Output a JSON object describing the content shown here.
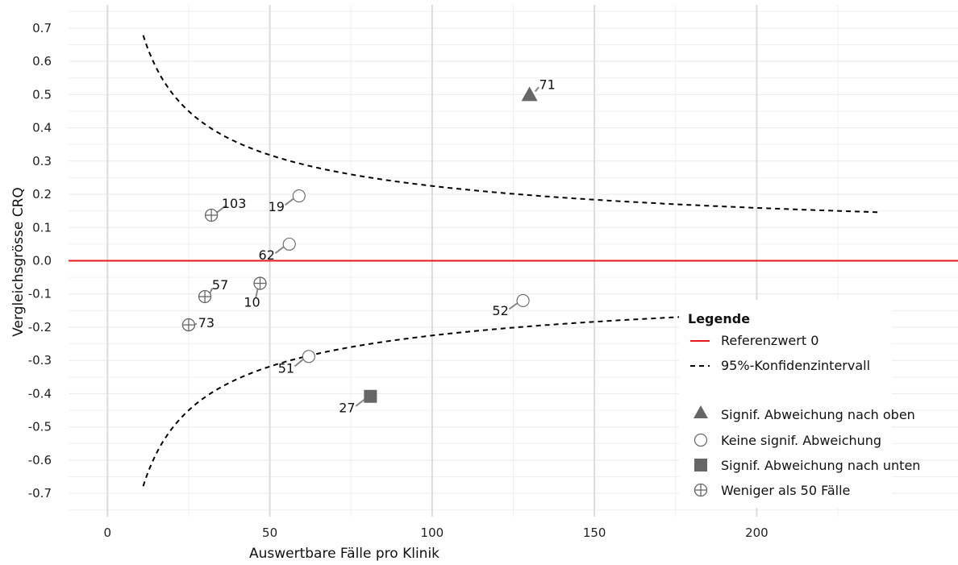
{
  "chart_data": {
    "type": "scatter",
    "xlabel": "Auswertbare Fälle pro Klinik",
    "ylabel": "Vergleichsgrösse CRQ",
    "xlim": [
      -12,
      262
    ],
    "ylim": [
      -0.77,
      0.77
    ],
    "x_ticks": [
      0,
      50,
      100,
      150,
      200
    ],
    "x_tick_labels": [
      "0",
      "50",
      "100",
      "150",
      "200"
    ],
    "y_ticks": [
      0.7,
      0.6,
      0.5,
      0.4,
      0.3,
      0.2,
      0.1,
      0.0,
      -0.1,
      -0.2,
      -0.3,
      -0.4,
      -0.5,
      -0.6,
      -0.7
    ],
    "y_tick_labels": [
      "0.7",
      "0.6",
      "0.5",
      "0.4",
      "0.3",
      "0.2",
      "0.1",
      "0.0",
      "-0.1",
      "-0.2",
      "-0.3",
      "-0.4",
      "-0.5",
      "-0.6",
      "-0.7"
    ],
    "grid": true,
    "reference_line": {
      "y": 0,
      "color": "#e8191c"
    },
    "confidence_band": {
      "coefficient": 2.25,
      "x_from": 11,
      "x_to": 238,
      "color": "#000000"
    },
    "points": [
      {
        "id": "71",
        "x": 130,
        "y": 0.5,
        "category": "up"
      },
      {
        "id": "19",
        "x": 59,
        "y": 0.195,
        "category": "none"
      },
      {
        "id": "103",
        "x": 32,
        "y": 0.137,
        "category": "few"
      },
      {
        "id": "62",
        "x": 56,
        "y": 0.05,
        "category": "none"
      },
      {
        "id": "10",
        "x": 47,
        "y": -0.068,
        "category": "few"
      },
      {
        "id": "57",
        "x": 30,
        "y": -0.108,
        "category": "few"
      },
      {
        "id": "52",
        "x": 128,
        "y": -0.12,
        "category": "none"
      },
      {
        "id": "73",
        "x": 25,
        "y": -0.193,
        "category": "few"
      },
      {
        "id": "51",
        "x": 62,
        "y": -0.288,
        "category": "none"
      },
      {
        "id": "27",
        "x": 81,
        "y": -0.408,
        "category": "down"
      }
    ],
    "legend": {
      "title": "Legende",
      "placement": "bottom-right",
      "lines": [
        {
          "label": "Referenzwert 0",
          "style": "solid",
          "color": "#e8191c"
        },
        {
          "label": "95%-Konfidenzintervall",
          "style": "dashed",
          "color": "#000000"
        }
      ],
      "symbols": [
        {
          "label": "Signif. Abweichung nach oben",
          "shape": "triangle"
        },
        {
          "label": "Keine signif. Abweichung",
          "shape": "circle"
        },
        {
          "label": "Signif. Abweichung nach unten",
          "shape": "square"
        },
        {
          "label": "Weniger als 50 Fälle",
          "shape": "crossed-circle"
        }
      ]
    },
    "colors": {
      "marker": "#666666",
      "leader": "#888888"
    }
  }
}
